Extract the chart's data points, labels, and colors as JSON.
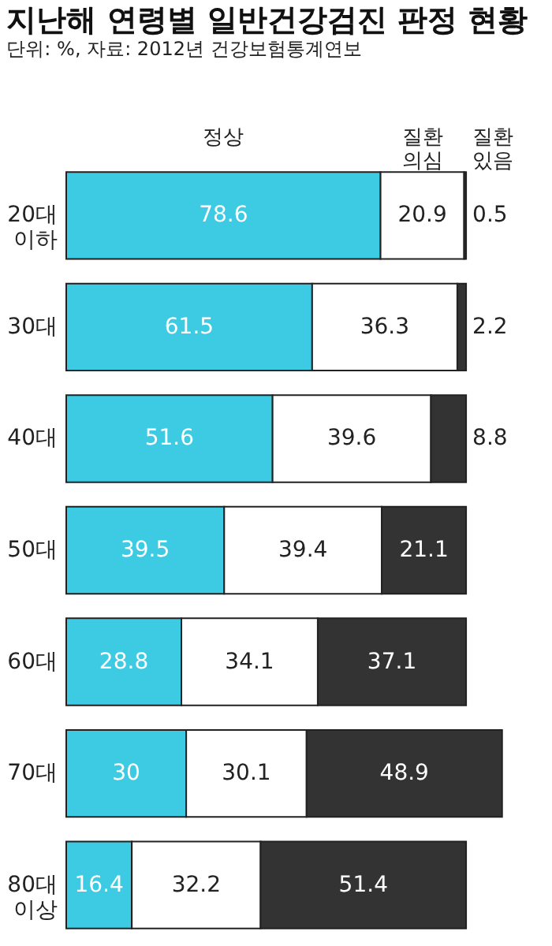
{
  "chart_data": {
    "type": "bar",
    "orientation": "horizontal",
    "stacked": true,
    "data_labels": true,
    "legend": "top",
    "grid": false,
    "title": "지난해 연령별 일반건강검진 판정 현황",
    "subtitle": "단위: %, 자료: 2012년 건강보험통계연보",
    "categories": [
      "20대\n이하",
      "30대",
      "40대",
      "50대",
      "60대",
      "70대",
      "80대\n이상"
    ],
    "series": [
      {
        "name": "정상",
        "color": "#3ccbe3",
        "values": [
          78.6,
          61.5,
          51.6,
          39.5,
          28.8,
          30,
          16.4
        ]
      },
      {
        "name": "질환\n의심",
        "color": "#ffffff",
        "values": [
          20.9,
          36.3,
          39.6,
          39.4,
          34.1,
          30.1,
          32.2
        ]
      },
      {
        "name": "질환\n있음",
        "color": "#333333",
        "values": [
          0.5,
          2.2,
          8.8,
          21.1,
          37.1,
          48.9,
          51.4
        ]
      }
    ]
  }
}
